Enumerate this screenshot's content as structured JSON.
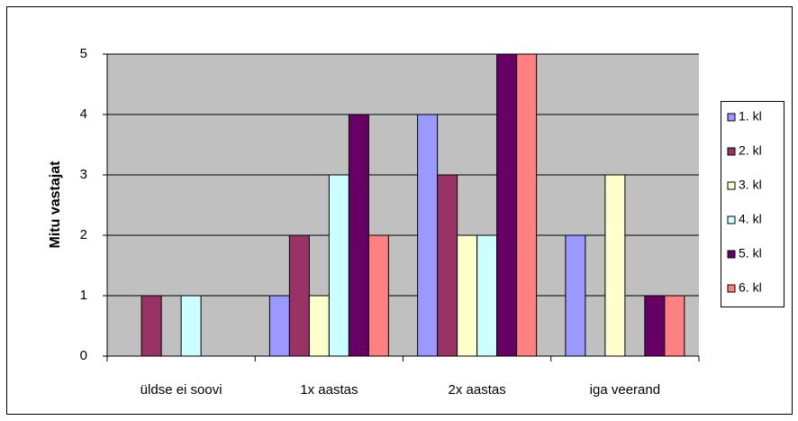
{
  "chart_data": {
    "type": "bar",
    "y_label": "Mitu vastajat",
    "categories": [
      "üldse ei soovi",
      "1x aastas",
      "2x aastas",
      "iga veerand"
    ],
    "series": [
      {
        "name": "1. kl",
        "color": "#9999ff",
        "values": [
          0,
          1,
          4,
          2
        ]
      },
      {
        "name": "2. kl",
        "color": "#993366",
        "values": [
          1,
          2,
          3,
          0
        ]
      },
      {
        "name": "3. kl",
        "color": "#ffffcc",
        "values": [
          0,
          1,
          2,
          3
        ]
      },
      {
        "name": "4. kl",
        "color": "#ccffff",
        "values": [
          1,
          3,
          2,
          0
        ]
      },
      {
        "name": "5. kl",
        "color": "#660066",
        "values": [
          0,
          4,
          5,
          1
        ]
      },
      {
        "name": "6. kl",
        "color": "#ff8080",
        "values": [
          0,
          2,
          5,
          1
        ]
      }
    ],
    "ylim": [
      0,
      5
    ],
    "yticks": [
      0,
      1,
      2,
      3,
      4,
      5
    ],
    "grid": true,
    "legend": "right"
  }
}
